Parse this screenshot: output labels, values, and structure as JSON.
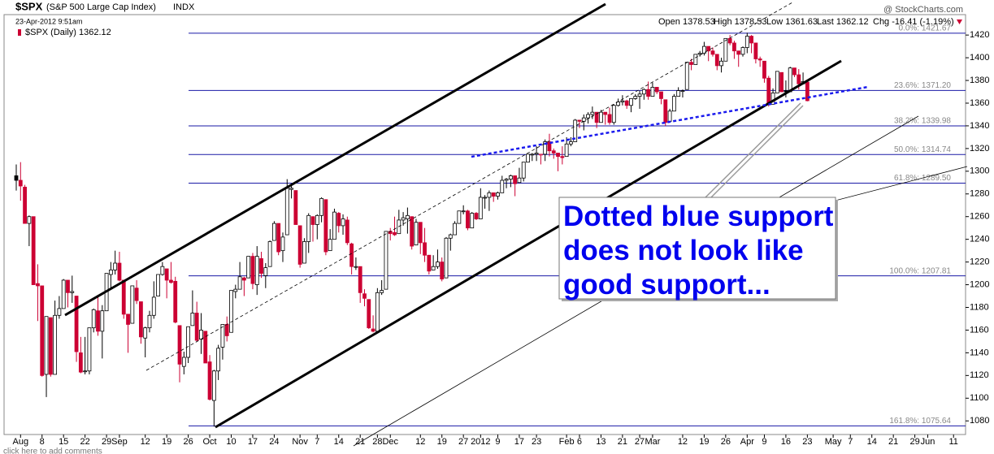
{
  "chart_data": {
    "type": "candlestick",
    "header": {
      "symbol": "$SPX",
      "name": "(S&P 500 Large Cap Index)",
      "exchange": "INDX",
      "timestamp": "23-Apr-2012 9:51am",
      "legend": "$SPX (Daily) 1362.12",
      "brand": "@ StockCharts.com",
      "open": "Open 1378.53",
      "high": "High 1378.53",
      "low": "Low 1361.63",
      "last": "Last 1362.12",
      "chg": "Chg -16.41 (-1.19%)"
    },
    "categories": [
      null,
      "Aug",
      null,
      null,
      null,
      null,
      "8",
      null,
      null,
      null,
      null,
      "15",
      null,
      null,
      null,
      null,
      "22",
      null,
      null,
      null,
      null,
      "29",
      null,
      null,
      "Sep",
      null,
      null,
      null,
      null,
      null,
      "12",
      null,
      null,
      null,
      null,
      "19",
      null,
      null,
      null,
      null,
      "26",
      null,
      null,
      null,
      null,
      "Oct",
      null,
      null,
      null,
      null,
      "10",
      null,
      null,
      null,
      null,
      "17",
      null,
      null,
      null,
      null,
      "24",
      null,
      null,
      null,
      null,
      null,
      "Nov",
      null,
      null,
      null,
      "7",
      null,
      null,
      null,
      null,
      "14",
      null,
      null,
      null,
      null,
      "21",
      null,
      null,
      null,
      "28",
      null,
      null,
      "Dec",
      null,
      null,
      null,
      null,
      null,
      null,
      "12",
      null,
      null,
      null,
      null,
      "19",
      null,
      null,
      null,
      null,
      "27",
      null,
      null,
      null,
      "2012",
      null,
      null,
      null,
      "9",
      null,
      null,
      null,
      null,
      "17",
      null,
      null,
      null,
      "23",
      null,
      null,
      null,
      null,
      null,
      null,
      "Feb",
      null,
      null,
      "6",
      null,
      null,
      null,
      null,
      "13",
      null,
      null,
      null,
      null,
      "21",
      null,
      null,
      null,
      "27",
      null,
      null,
      "Mar",
      null,
      null,
      null,
      null,
      null,
      null,
      "12",
      null,
      null,
      null,
      null,
      "19",
      null,
      null,
      null,
      null,
      "26",
      null,
      null,
      null,
      null,
      "Apr",
      null,
      null,
      null,
      "9",
      null,
      null,
      null,
      null,
      "16",
      null,
      null,
      null,
      null,
      "23",
      null,
      null,
      null,
      null,
      null,
      "May",
      null,
      null,
      null,
      "7",
      null,
      null,
      null,
      null,
      "14",
      null,
      null,
      null,
      null,
      "21",
      null,
      null,
      null,
      null,
      "29",
      null,
      null,
      "Jun",
      null,
      null,
      null,
      null,
      null,
      "11",
      null
    ],
    "open": [
      1296,
      1292,
      1286,
      1254,
      1260,
      1201,
      1199,
      1121,
      1171,
      1121,
      1173,
      1179,
      1204,
      1193,
      1190,
      1140,
      1124,
      1124,
      1162,
      1177,
      1159,
      1177,
      1209,
      1213,
      1219,
      1204,
      1174,
      1166,
      1197,
      1185,
      1153,
      1162,
      1173,
      1190,
      1209,
      1214,
      1204,
      1203,
      1164,
      1128,
      1136,
      1164,
      1175,
      1152,
      1159,
      1132,
      1098,
      1124,
      1145,
      1165,
      1158,
      1194,
      1196,
      1206,
      1206,
      1225,
      1200,
      1223,
      1208,
      1216,
      1239,
      1254,
      1230,
      1244,
      1284,
      1283,
      1252,
      1219,
      1238,
      1260,
      1253,
      1261,
      1275,
      1230,
      1240,
      1263,
      1252,
      1257,
      1236,
      1216,
      1216,
      1192,
      1187,
      1161,
      1159,
      1193,
      1196,
      1247,
      1246,
      1245,
      1257,
      1258,
      1260,
      1235,
      1255,
      1237,
      1226,
      1213,
      1216,
      1220,
      1206,
      1241,
      1244,
      1254,
      1265,
      1265,
      1250,
      1263,
      1258,
      1277,
      1277,
      1281,
      1278,
      1281,
      1292,
      1293,
      1296,
      1290,
      1294,
      1308,
      1315,
      1315,
      1315,
      1315,
      1326,
      1318,
      1316,
      1313,
      1313,
      1324,
      1326,
      1345,
      1344,
      1347,
      1350,
      1352,
      1343,
      1352,
      1350,
      1343,
      1358,
      1361,
      1362,
      1358,
      1364,
      1366,
      1368,
      1372,
      1366,
      1374,
      1370,
      1363,
      1344,
      1353,
      1366,
      1371,
      1372,
      1396,
      1394,
      1403,
      1404,
      1410,
      1406,
      1403,
      1393,
      1397,
      1417,
      1413,
      1406,
      1403,
      1409,
      1419,
      1413,
      1399,
      1397,
      1382,
      1359,
      1369,
      1387,
      1371,
      1370,
      1391,
      1385,
      1377,
      1378.53,
      null,
      null,
      null,
      null,
      null,
      null,
      null,
      null,
      null,
      null,
      null,
      null,
      null,
      null,
      null,
      null,
      null,
      null,
      null,
      null,
      null,
      null,
      null,
      null,
      null,
      null,
      null,
      null,
      null,
      null,
      null,
      null,
      null,
      null,
      null
    ],
    "high": [
      1306,
      1308,
      1288,
      1261,
      1260,
      1218,
      1199,
      1172,
      1171,
      1186,
      1190,
      1205,
      1204,
      1208,
      1190,
      1154,
      1154,
      1162,
      1179,
      1190,
      1182,
      1210,
      1220,
      1230,
      1229,
      1204,
      1174,
      1199,
      1204,
      1185,
      1163,
      1177,
      1203,
      1209,
      1220,
      1214,
      1220,
      1207,
      1164,
      1141,
      1163,
      1195,
      1185,
      1175,
      1159,
      1138,
      1125,
      1147,
      1165,
      1172,
      1195,
      1200,
      1220,
      1207,
      1224,
      1228,
      1234,
      1229,
      1219,
      1239,
      1256,
      1254,
      1246,
      1293,
      1289,
      1283,
      1252,
      1241,
      1263,
      1260,
      1262,
      1277,
      1275,
      1249,
      1267,
      1264,
      1262,
      1260,
      1237,
      1224,
      1216,
      1196,
      1187,
      1173,
      1197,
      1204,
      1247,
      1250,
      1260,
      1266,
      1264,
      1268,
      1260,
      1258,
      1255,
      1250,
      1226,
      1226,
      1231,
      1224,
      1242,
      1245,
      1256,
      1265,
      1270,
      1266,
      1264,
      1264,
      1285,
      1279,
      1283,
      1281,
      1282,
      1296,
      1294,
      1297,
      1296,
      1303,
      1308,
      1315,
      1316,
      1322,
      1315,
      1328,
      1333,
      1320,
      1316,
      1322,
      1330,
      1330,
      1346,
      1345,
      1350,
      1352,
      1357,
      1352,
      1354,
      1352,
      1356,
      1359,
      1364,
      1367,
      1363,
      1364,
      1368,
      1371,
      1373,
      1379,
      1378,
      1374,
      1370,
      1363,
      1355,
      1368,
      1374,
      1372,
      1396,
      1399,
      1403,
      1406,
      1414,
      1410,
      1409,
      1403,
      1400,
      1417,
      1420,
      1415,
      1406,
      1410,
      1422,
      1420,
      1413,
      1401,
      1397,
      1384,
      1373,
      1388,
      1387,
      1380,
      1392,
      1391,
      1390,
      1387,
      1378.53,
      null,
      null,
      null,
      null,
      null,
      null,
      null,
      null,
      null,
      null,
      null,
      null,
      null,
      null,
      null,
      null,
      null,
      null,
      null,
      null,
      null,
      null,
      null,
      null,
      null,
      null,
      null,
      null,
      null,
      null,
      null,
      null,
      null,
      null,
      null
    ],
    "low": [
      1283,
      1274,
      1254,
      1234,
      1200,
      1168,
      1119,
      1101,
      1119,
      1121,
      1170,
      1179,
      1180,
      1184,
      1132,
      1122,
      1121,
      1121,
      1158,
      1155,
      1135,
      1177,
      1196,
      1209,
      1203,
      1170,
      1140,
      1166,
      1183,
      1148,
      1136,
      1158,
      1170,
      1190,
      1208,
      1188,
      1201,
      1166,
      1114,
      1121,
      1131,
      1164,
      1150,
      1139,
      1131,
      1098,
      1075,
      1116,
      1134,
      1150,
      1158,
      1188,
      1196,
      1190,
      1206,
      1196,
      1191,
      1206,
      1197,
      1216,
      1239,
      1226,
      1220,
      1244,
      1276,
      1253,
      1215,
      1219,
      1228,
      1238,
      1240,
      1255,
      1226,
      1230,
      1240,
      1246,
      1244,
      1235,
      1209,
      1213,
      1184,
      1181,
      1161,
      1158,
      1159,
      1191,
      1196,
      1239,
      1243,
      1245,
      1252,
      1245,
      1231,
      1235,
      1227,
      1220,
      1209,
      1213,
      1214,
      1203,
      1206,
      1230,
      1244,
      1254,
      1262,
      1248,
      1250,
      1257,
      1258,
      1267,
      1265,
      1273,
      1275,
      1281,
      1285,
      1286,
      1278,
      1290,
      1291,
      1308,
      1309,
      1309,
      1306,
      1309,
      1313,
      1311,
      1300,
      1306,
      1313,
      1322,
      1326,
      1338,
      1336,
      1342,
      1346,
      1338,
      1343,
      1341,
      1341,
      1341,
      1357,
      1358,
      1355,
      1352,
      1363,
      1355,
      1363,
      1363,
      1366,
      1368,
      1359,
      1340,
      1344,
      1353,
      1366,
      1365,
      1372,
      1389,
      1394,
      1401,
      1402,
      1397,
      1401,
      1389,
      1387,
      1397,
      1411,
      1399,
      1392,
      1401,
      1404,
      1404,
      1395,
      1392,
      1378,
      1357,
      1359,
      1369,
      1370,
      1365,
      1370,
      1383,
      1372,
      1377,
      1361.63,
      null,
      null,
      null,
      null,
      null,
      null,
      null,
      null,
      null,
      null,
      null,
      null,
      null,
      null,
      null,
      null,
      null,
      null,
      null,
      null,
      null,
      null,
      null,
      null,
      null,
      null,
      null,
      null,
      null,
      null,
      null,
      null,
      null,
      null,
      null
    ],
    "close": [
      1292,
      1287,
      1254,
      1260,
      1200,
      1199,
      1120,
      1172,
      1121,
      1173,
      1179,
      1204,
      1193,
      1194,
      1141,
      1123,
      1124,
      1162,
      1178,
      1159,
      1177,
      1210,
      1213,
      1219,
      1204,
      1174,
      1165,
      1199,
      1186,
      1154,
      1162,
      1173,
      1189,
      1209,
      1216,
      1204,
      1202,
      1167,
      1130,
      1136,
      1163,
      1175,
      1151,
      1160,
      1131,
      1099,
      1124,
      1144,
      1165,
      1155,
      1195,
      1196,
      1207,
      1204,
      1225,
      1201,
      1225,
      1210,
      1215,
      1238,
      1254,
      1229,
      1242,
      1285,
      1285,
      1253,
      1218,
      1238,
      1261,
      1253,
      1261,
      1276,
      1229,
      1240,
      1264,
      1252,
      1258,
      1237,
      1216,
      1216,
      1193,
      1188,
      1162,
      1159,
      1193,
      1195,
      1247,
      1245,
      1244,
      1257,
      1259,
      1261,
      1234,
      1255,
      1237,
      1226,
      1212,
      1216,
      1220,
      1205,
      1241,
      1244,
      1254,
      1265,
      1265,
      1250,
      1263,
      1258,
      1277,
      1277,
      1281,
      1278,
      1281,
      1292,
      1293,
      1296,
      1289,
      1294,
      1308,
      1315,
      1315,
      1316,
      1315,
      1326,
      1318,
      1316,
      1313,
      1312,
      1324,
      1326,
      1345,
      1344,
      1347,
      1350,
      1352,
      1343,
      1352,
      1350,
      1343,
      1358,
      1361,
      1362,
      1358,
      1364,
      1366,
      1368,
      1372,
      1366,
      1374,
      1370,
      1364,
      1343,
      1353,
      1366,
      1371,
      1371,
      1396,
      1394,
      1403,
      1404,
      1410,
      1406,
      1403,
      1393,
      1397,
      1417,
      1413,
      1406,
      1403,
      1409,
      1419,
      1413,
      1399,
      1398,
      1382,
      1359,
      1369,
      1388,
      1370,
      1370,
      1391,
      1385,
      1377,
      1379,
      1362.12,
      null,
      null,
      null,
      null,
      null,
      null,
      null,
      null,
      null,
      null,
      null,
      null,
      null,
      null,
      null,
      null,
      null,
      null,
      null,
      null,
      null,
      null,
      null,
      null,
      null,
      null,
      null,
      null,
      null,
      null,
      null,
      null,
      null,
      null,
      null
    ],
    "up_color": "#000000",
    "down_color": "#cc0033",
    "ylim": [
      1068,
      1438
    ],
    "yticks": [
      1080,
      1100,
      1120,
      1140,
      1160,
      1180,
      1200,
      1220,
      1240,
      1260,
      1280,
      1300,
      1320,
      1340,
      1360,
      1380,
      1400,
      1420
    ],
    "fib_levels": [
      {
        "label": "0.0%: 1421.67",
        "value": 1421.67
      },
      {
        "label": "23.6%: 1371.20",
        "value": 1371.2
      },
      {
        "label": "38.2%: 1339.98",
        "value": 1339.98
      },
      {
        "label": "50.0%: 1314.74",
        "value": 1314.74
      },
      {
        "label": "61.8%: 1289.50",
        "value": 1289.5
      },
      {
        "label": "100.0%: 1207.81",
        "value": 1207.81
      },
      {
        "label": "161.8%: 1075.64",
        "value": 1075.64
      }
    ],
    "fib_color": "#1a1aa6",
    "annotation": [
      "Dotted blue support",
      "does not look like",
      "good support..."
    ],
    "footer": "click here to add comments"
  }
}
